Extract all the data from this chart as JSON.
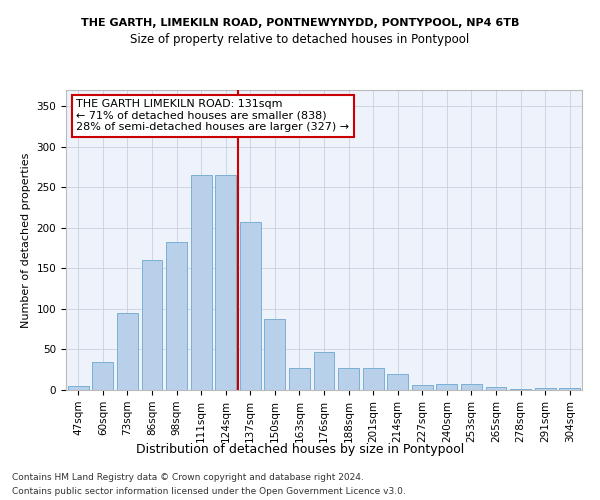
{
  "title1": "THE GARTH, LIMEKILN ROAD, PONTNEWYNYDD, PONTYPOOL, NP4 6TB",
  "title2": "Size of property relative to detached houses in Pontypool",
  "xlabel": "Distribution of detached houses by size in Pontypool",
  "ylabel": "Number of detached properties",
  "categories": [
    "47sqm",
    "60sqm",
    "73sqm",
    "86sqm",
    "98sqm",
    "111sqm",
    "124sqm",
    "137sqm",
    "150sqm",
    "163sqm",
    "176sqm",
    "188sqm",
    "201sqm",
    "214sqm",
    "227sqm",
    "240sqm",
    "253sqm",
    "265sqm",
    "278sqm",
    "291sqm",
    "304sqm"
  ],
  "values": [
    5,
    35,
    95,
    160,
    182,
    265,
    265,
    207,
    88,
    27,
    47,
    27,
    27,
    20,
    6,
    8,
    8,
    4,
    1,
    3,
    3
  ],
  "bar_color": "#b8d0ea",
  "bar_edge_color": "#7aafd4",
  "vline_color": "#cc0000",
  "annotation_line1": "THE GARTH LIMEKILN ROAD: 131sqm",
  "annotation_line2": "← 71% of detached houses are smaller (838)",
  "annotation_line3": "28% of semi-detached houses are larger (327) →",
  "annotation_box_color": "#ffffff",
  "annotation_box_edge": "#cc0000",
  "footer1": "Contains HM Land Registry data © Crown copyright and database right 2024.",
  "footer2": "Contains public sector information licensed under the Open Government Licence v3.0.",
  "bg_color": "#eef2fa",
  "ylim": [
    0,
    370
  ],
  "yticks": [
    0,
    50,
    100,
    150,
    200,
    250,
    300,
    350
  ],
  "title1_fontsize": 8.0,
  "title2_fontsize": 8.5,
  "ylabel_fontsize": 8.0,
  "xlabel_fontsize": 9.0,
  "tick_fontsize": 7.5,
  "annot_fontsize": 8.0,
  "footer_fontsize": 6.5
}
